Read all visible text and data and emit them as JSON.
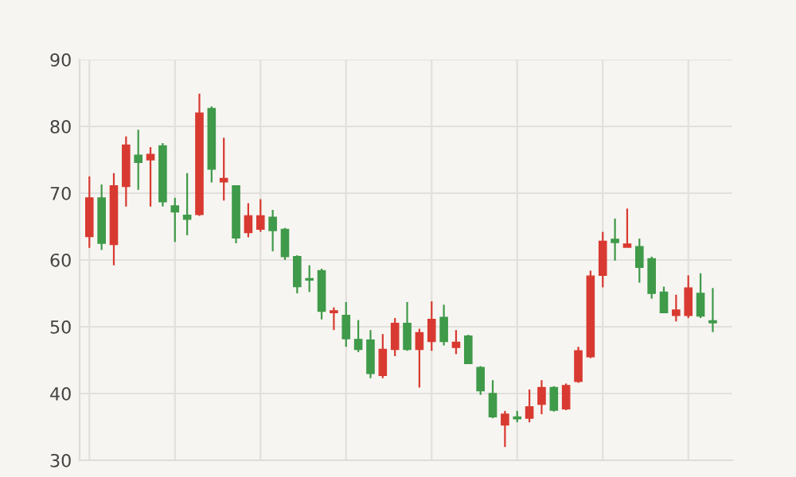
{
  "chart_data": {
    "type": "candlestick",
    "categories": [
      null,
      null,
      null,
      null,
      null,
      null,
      null,
      null,
      null,
      null,
      null,
      null,
      null,
      null,
      null,
      null,
      null,
      null,
      null,
      null,
      null,
      null,
      null,
      null,
      null,
      null,
      null,
      null,
      null,
      null,
      null,
      null,
      null,
      null,
      null,
      null,
      null,
      null,
      null,
      null,
      null,
      null,
      null,
      null,
      null,
      null,
      null,
      null,
      null,
      null,
      null,
      null
    ],
    "ohlc": [
      [
        63.5,
        72.5,
        61.8,
        69.3
      ],
      [
        69.3,
        71.3,
        61.5,
        62.5
      ],
      [
        62.3,
        73,
        59.2,
        71.1
      ],
      [
        71,
        78.5,
        68,
        77.2
      ],
      [
        75.7,
        79.5,
        70.5,
        74.6
      ],
      [
        75,
        76.9,
        68,
        75.8
      ],
      [
        77.1,
        77.5,
        68,
        68.7
      ],
      [
        68.1,
        69.3,
        62.7,
        67.2
      ],
      [
        66.7,
        73,
        63.7,
        66.1
      ],
      [
        66.8,
        84.9,
        66.6,
        82
      ],
      [
        82.7,
        83,
        71.6,
        73.6
      ],
      [
        71.7,
        78.3,
        68.9,
        72.2
      ],
      [
        71.1,
        71.1,
        62.5,
        63.3
      ],
      [
        64.1,
        68.5,
        63.4,
        66.6
      ],
      [
        64.6,
        69.1,
        64.2,
        66.6
      ],
      [
        66.4,
        67.5,
        61.3,
        64.4
      ],
      [
        64.6,
        64.8,
        60,
        60.5
      ],
      [
        60.5,
        60.7,
        55,
        56
      ],
      [
        57.2,
        59.2,
        55.2,
        57
      ],
      [
        58.4,
        58.7,
        51.1,
        52.3
      ],
      [
        52.1,
        52.9,
        49.5,
        52.4
      ],
      [
        51.7,
        53.7,
        47,
        48.2
      ],
      [
        48.1,
        51,
        46.2,
        46.6
      ],
      [
        48,
        49.5,
        42.3,
        43
      ],
      [
        42.7,
        48.9,
        42.3,
        46.6
      ],
      [
        46.6,
        51.3,
        45.6,
        50.5
      ],
      [
        50.5,
        53.7,
        46.4,
        46.6
      ],
      [
        46.6,
        49.7,
        40.9,
        49.1
      ],
      [
        47.8,
        53.8,
        46.4,
        51.1
      ],
      [
        51.4,
        53.3,
        47.2,
        47.8
      ],
      [
        46.9,
        49.5,
        45.9,
        47.7
      ],
      [
        48.6,
        48.8,
        44.5,
        44.5
      ],
      [
        43.9,
        44.1,
        39.8,
        40.4
      ],
      [
        40,
        42,
        36.3,
        36.5
      ],
      [
        35.3,
        37.4,
        32,
        36.9
      ],
      [
        36.5,
        37.4,
        35.7,
        36.2
      ],
      [
        36.3,
        40.6,
        35.7,
        38
      ],
      [
        38.4,
        42,
        36.9,
        40.9
      ],
      [
        40.9,
        41.1,
        37.3,
        37.5
      ],
      [
        37.7,
        41.5,
        37.5,
        41.2
      ],
      [
        41.8,
        47,
        41.6,
        46.4
      ],
      [
        45.5,
        58.4,
        45.3,
        57.6
      ],
      [
        57.7,
        64.2,
        55.9,
        62.8
      ],
      [
        63.1,
        66.2,
        59.9,
        62.6
      ],
      [
        61.9,
        67.7,
        61.9,
        62.4
      ],
      [
        62,
        63.2,
        56.6,
        58.9
      ],
      [
        60.2,
        60.5,
        54.2,
        55
      ],
      [
        55.2,
        56,
        52.1,
        52.1
      ],
      [
        51.7,
        54.8,
        50.8,
        52.5
      ],
      [
        51.7,
        57.7,
        51.3,
        55.8
      ],
      [
        55,
        58,
        51.3,
        51.6
      ],
      [
        50.9,
        55.8,
        49.2,
        50.6
      ]
    ],
    "colors": [
      "#d83a31",
      "#3f9a4a",
      "#d83a31",
      "#d83a31",
      "#3f9a4a",
      "#d83a31",
      "#3f9a4a",
      "#3f9a4a",
      "#3f9a4a",
      "#d83a31",
      "#3f9a4a",
      "#d83a31",
      "#3f9a4a",
      "#d83a31",
      "#d83a31",
      "#3f9a4a",
      "#3f9a4a",
      "#3f9a4a",
      "#3f9a4a",
      "#3f9a4a",
      "#d83a31",
      "#3f9a4a",
      "#3f9a4a",
      "#3f9a4a",
      "#d83a31",
      "#d83a31",
      "#3f9a4a",
      "#d83a31",
      "#d83a31",
      "#3f9a4a",
      "#d83a31",
      "#3f9a4a",
      "#3f9a4a",
      "#3f9a4a",
      "#d83a31",
      "#3f9a4a",
      "#d83a31",
      "#d83a31",
      "#3f9a4a",
      "#d83a31",
      "#d83a31",
      "#d83a31",
      "#d83a31",
      "#3f9a4a",
      "#d83a31",
      "#3f9a4a",
      "#3f9a4a",
      "#3f9a4a",
      "#d83a31",
      "#d83a31",
      "#3f9a4a",
      "#3f9a4a"
    ],
    "ylim": [
      30,
      90
    ],
    "yticks": [
      30,
      40,
      50,
      60,
      70,
      80,
      90
    ],
    "grid": true
  }
}
